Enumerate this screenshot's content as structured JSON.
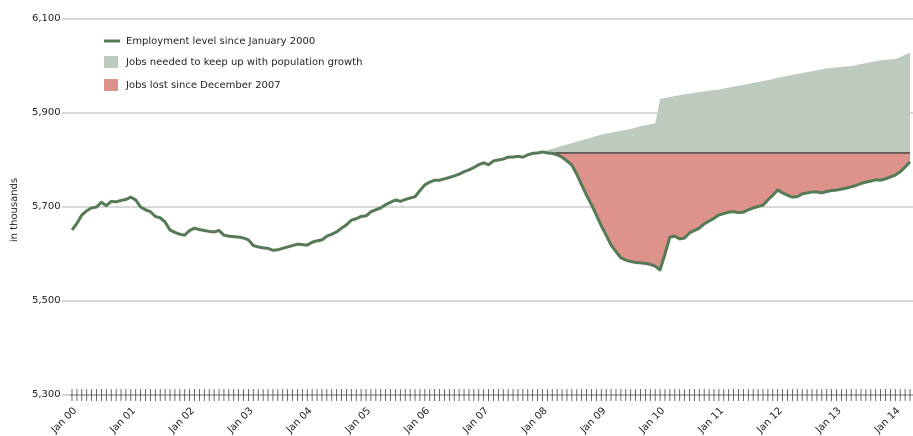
{
  "chart_data": {
    "type": "line",
    "y_label": "in thousands",
    "ylim": [
      5300,
      6100
    ],
    "yticks": [
      {
        "value": 5300,
        "label": "5,300"
      },
      {
        "value": 5500,
        "label": "5,500"
      },
      {
        "value": 5700,
        "label": "5,700"
      },
      {
        "value": 5900,
        "label": "5,900"
      },
      {
        "value": 6100,
        "label": "6,100"
      }
    ],
    "grid": true,
    "legend": "top-left",
    "categories": [
      "Jan 00",
      null,
      null,
      null,
      null,
      null,
      null,
      null,
      null,
      null,
      null,
      null,
      "Jan 01",
      null,
      null,
      null,
      null,
      null,
      null,
      null,
      null,
      null,
      null,
      null,
      "Jan 02",
      null,
      null,
      null,
      null,
      null,
      null,
      null,
      null,
      null,
      null,
      null,
      "Jan 03",
      null,
      null,
      null,
      null,
      null,
      null,
      null,
      null,
      null,
      null,
      null,
      "Jan 04",
      null,
      null,
      null,
      null,
      null,
      null,
      null,
      null,
      null,
      null,
      null,
      "Jan 05",
      null,
      null,
      null,
      null,
      null,
      null,
      null,
      null,
      null,
      null,
      null,
      "Jan 06",
      null,
      null,
      null,
      null,
      null,
      null,
      null,
      null,
      null,
      null,
      null,
      "Jan 07",
      null,
      null,
      null,
      null,
      null,
      null,
      null,
      null,
      null,
      null,
      null,
      "Jan 08",
      null,
      null,
      null,
      null,
      null,
      null,
      null,
      null,
      null,
      null,
      null,
      "Jan 09",
      null,
      null,
      null,
      null,
      null,
      null,
      null,
      null,
      null,
      null,
      null,
      "Jan 10",
      null,
      null,
      null,
      null,
      null,
      null,
      null,
      null,
      null,
      null,
      null,
      "Jan 11",
      null,
      null,
      null,
      null,
      null,
      null,
      null,
      null,
      null,
      null,
      null,
      "Jan 12",
      null,
      null,
      null,
      null,
      null,
      null,
      null,
      null,
      null,
      null,
      null,
      "Jan 13",
      null,
      null,
      null,
      null,
      null,
      null,
      null,
      null,
      null,
      null,
      null,
      "Jan 14",
      null,
      null,
      null
    ],
    "series": [
      {
        "name": "Employment level since January 2000",
        "color": "#557a56",
        "kind": "line",
        "values": [
          5651,
          5665,
          5683,
          5692,
          5698,
          5700,
          5710,
          5703,
          5712,
          5711,
          5714,
          5716,
          5721,
          5715,
          5700,
          5694,
          5690,
          5680,
          5677,
          5668,
          5651,
          5646,
          5642,
          5640,
          5650,
          5655,
          5652,
          5650,
          5648,
          5647,
          5650,
          5640,
          5638,
          5637,
          5636,
          5634,
          5630,
          5618,
          5615,
          5613,
          5612,
          5608,
          5609,
          5612,
          5615,
          5618,
          5621,
          5620,
          5619,
          5625,
          5628,
          5630,
          5638,
          5642,
          5647,
          5655,
          5662,
          5672,
          5675,
          5680,
          5681,
          5690,
          5694,
          5698,
          5705,
          5710,
          5715,
          5712,
          5716,
          5719,
          5722,
          5735,
          5747,
          5753,
          5757,
          5757,
          5760,
          5763,
          5766,
          5770,
          5775,
          5779,
          5784,
          5790,
          5794,
          5790,
          5798,
          5800,
          5802,
          5806,
          5806,
          5808,
          5806,
          5811,
          5814,
          5815,
          5817,
          5815,
          5814,
          5811,
          5806,
          5798,
          5789,
          5770,
          5747,
          5725,
          5705,
          5683,
          5660,
          5640,
          5619,
          5605,
          5592,
          5587,
          5584,
          5582,
          5581,
          5580,
          5578,
          5574,
          5566,
          5600,
          5636,
          5638,
          5632,
          5634,
          5645,
          5650,
          5655,
          5664,
          5670,
          5676,
          5683,
          5686,
          5689,
          5690,
          5688,
          5689,
          5694,
          5698,
          5701,
          5704,
          5715,
          5725,
          5736,
          5730,
          5725,
          5721,
          5722,
          5728,
          5730,
          5732,
          5732,
          5730,
          5733,
          5735,
          5736,
          5738,
          5740,
          5743,
          5746,
          5750,
          5753,
          5755,
          5758,
          5757,
          5760,
          5764,
          5768,
          5775,
          5785,
          5796
        ]
      },
      {
        "name": "Jobs needed to keep up with population growth",
        "color": "#bccbbd",
        "kind": "area",
        "values": [
          null,
          null,
          null,
          null,
          null,
          null,
          null,
          null,
          null,
          null,
          null,
          null,
          null,
          null,
          null,
          null,
          null,
          null,
          null,
          null,
          null,
          null,
          null,
          null,
          null,
          null,
          null,
          null,
          null,
          null,
          null,
          null,
          null,
          null,
          null,
          null,
          null,
          null,
          null,
          null,
          null,
          null,
          null,
          null,
          null,
          null,
          null,
          null,
          null,
          null,
          null,
          null,
          null,
          null,
          null,
          null,
          null,
          null,
          null,
          null,
          null,
          null,
          null,
          null,
          null,
          null,
          null,
          null,
          null,
          null,
          null,
          null,
          null,
          null,
          null,
          null,
          null,
          null,
          null,
          null,
          null,
          null,
          null,
          null,
          null,
          null,
          null,
          null,
          null,
          null,
          null,
          null,
          null,
          null,
          null,
          5815,
          5818,
          5821,
          5824,
          5827,
          5830,
          5833,
          5836,
          5839,
          5842,
          5845,
          5848,
          5851,
          5854,
          5856,
          5858,
          5860,
          5862,
          5864,
          5866,
          5869,
          5872,
          5874,
          5876,
          5878,
          5930,
          5932,
          5934,
          5936,
          5938,
          5940,
          5941,
          5943,
          5945,
          5946,
          5948,
          5949,
          5950,
          5952,
          5954,
          5956,
          5958,
          5960,
          5962,
          5964,
          5966,
          5968,
          5970,
          5972,
          5975,
          5977,
          5979,
          5981,
          5983,
          5985,
          5987,
          5989,
          5991,
          5993,
          5995,
          5996,
          5997,
          5998,
          5999,
          6000,
          6002,
          6004,
          6006,
          6008,
          6010,
          6012,
          6013,
          6014,
          6015,
          6019,
          6024,
          6028
        ]
      }
    ],
    "jobs_lost": {
      "name": "Jobs lost since December 2007",
      "color": "#de928c",
      "baseline": 5815
    }
  }
}
